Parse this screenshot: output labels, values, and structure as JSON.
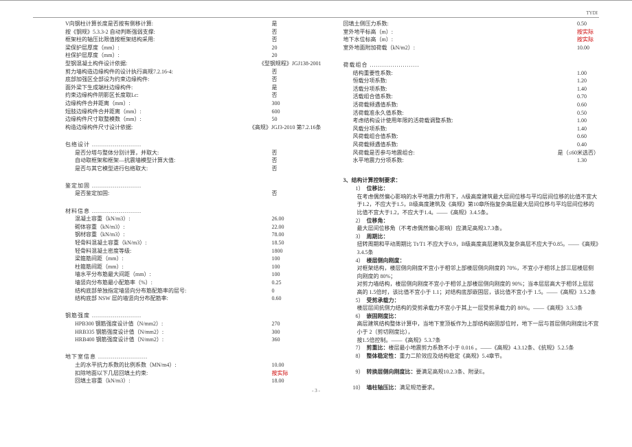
{
  "header": {
    "label": "TYDI",
    "pageNum": "- 3 -"
  },
  "colA": {
    "rows1": [
      {
        "l": "V向钢柱计算长度是否按有侧移计算:",
        "v": "是"
      },
      {
        "l": "按《钢规》5.3.3-2 自动判断强弱支撑:",
        "v": "否"
      },
      {
        "l": "框架柱的轴压比限值按框架结构采用:",
        "v": "否"
      },
      {
        "l": "梁保护层厚度（mm）:",
        "v": "20"
      },
      {
        "l": "柱保护层厚度（mm）:",
        "v": "20"
      },
      {
        "l": "型钢混凝土构件设计依据:",
        "v": "《型钢规程》JGJ138-2001"
      },
      {
        "l": "剪力墙构造边缘构件的设计执行高规7.2.16-4:",
        "v": "否"
      },
      {
        "l": "底部加强区全部设为约束边缘构件:",
        "v": "否"
      },
      {
        "l": "面外梁下生成端柱边缘构件:",
        "v": "是"
      },
      {
        "l": "约束边缘构件阴影区长度取Lc:",
        "v": "否"
      },
      {
        "l": "边缘构件合并距离（mm）:",
        "v": "300"
      },
      {
        "l": "短肢边缘构件合并距离（mm）:",
        "v": "600"
      },
      {
        "l": "边缘构件尺寸取整模数（mm）:",
        "v": "50"
      },
      {
        "l": "构造边缘构件尺寸设计依据:",
        "v": "《高规》JGJ3-2010 第7.2.16条"
      }
    ],
    "sec2": "包络设计 ........................",
    "rows2": [
      {
        "l": "是否分塔与整体分别计算，并取大:",
        "v": "否"
      },
      {
        "l": "自动取框架和框架—抗震墙模型计算大值:",
        "v": "否"
      },
      {
        "l": "是否与其它模型进行包络取大:",
        "v": "否"
      }
    ],
    "sec3": "鉴定加固 ........................",
    "rows3": [
      {
        "l": "是否鉴定加固:",
        "v": "否"
      }
    ],
    "sec4": "材料信息 ........................",
    "rows4": [
      {
        "l": "混凝土容重（kN/m3）:",
        "v": "26.00"
      },
      {
        "l": "砌体容重（kN/m3）:",
        "v": "22.00"
      },
      {
        "l": "钢材容重（kN/m3）:",
        "v": "78.00"
      },
      {
        "l": "轻骨料混凝土容重（kN/m3）:",
        "v": "18.50"
      },
      {
        "l": "轻骨料混凝土密度等级:",
        "v": "1800"
      },
      {
        "l": "梁箍筋间距（mm）:",
        "v": "100"
      },
      {
        "l": "柱箍筋间距（mm）:",
        "v": "100"
      },
      {
        "l": "墙水平分布筋最大间距（mm）:",
        "v": "100"
      },
      {
        "l": "墙竖向分布筋最小配筋率（%）:",
        "v": "0.25"
      },
      {
        "l": "结构底部单独指定墙竖向分布筋配筋率的层号:",
        "v": "0"
      },
      {
        "l": "结构底部 NSW 层的墙竖向分布配筋率:",
        "v": "0.60"
      }
    ],
    "sec5": "钢筋强度 ........................",
    "rows5": [
      {
        "l": "HPB300 钢筋强度设计值（N/mm2）:",
        "v": "270"
      },
      {
        "l": "HRB335 钢筋强度设计值（N/mm2）:",
        "v": "300"
      },
      {
        "l": "HRB400 钢筋强度设计值（N/mm2）:",
        "v": "360"
      }
    ],
    "sec6": "地下室信息 ........................",
    "rows6": [
      {
        "l": "土的水平抗力系数的比例系数（MN/m4）:",
        "v": "10.00"
      },
      {
        "l": "扣除地面以下几层回填土约束:",
        "v": "按实际",
        "red": true
      },
      {
        "l": "回填土容重（kN/m3）:",
        "v": "18.00"
      }
    ]
  },
  "colBtop": [
    {
      "l": "回填土侧压力系数:",
      "v": "0.50"
    },
    {
      "l": "室外地平标高（m）:",
      "v": "按实际",
      "red": true
    },
    {
      "l": "地下水位标高（m）:",
      "v": "按实际",
      "red": true
    },
    {
      "l": "室外地面附加荷载（kN/m2）:",
      "v": "10.00"
    }
  ],
  "colBsec": "荷载组合 ........................",
  "colBrows": [
    {
      "l": "结构重要性系数:",
      "v": "1.00"
    },
    {
      "l": "恒载分项系数:",
      "v": "1.20"
    },
    {
      "l": "活载分项系数:",
      "v": "1.40"
    },
    {
      "l": "活载组合值系数:",
      "v": "0.70"
    },
    {
      "l": "活荷载频遇值系数:",
      "v": "0.60"
    },
    {
      "l": "活荷载准永久值系数:",
      "v": "0.50"
    },
    {
      "l": "考虑结构设计使用年限的活荷载调整系数:",
      "v": "1.00"
    },
    {
      "l": "风载分项系数:",
      "v": "1.40"
    },
    {
      "l": "风荷载组合值系数:",
      "v": "0.60"
    },
    {
      "l": "风荷载频遇值系数:",
      "v": "0.40"
    },
    {
      "l": "风荷载是否参与地震组合:",
      "v": "是（≤60米选否）"
    },
    {
      "l": "水平地震力分项系数:",
      "v": "1.30"
    }
  ],
  "section3": {
    "title": "3、结构计算控制要求：",
    "items": [
      {
        "n": "1）",
        "t": "位移比：",
        "b": true,
        "p": "在考虑偶然偏心影响的水平地震力作用下，A级高度建筑最大层间位移与平均层间位移的比值不宜大于1.2，不应大于1.5，B级高度建筑及《高规》第10章所指复杂高层最大层间位移与平均层间位移的比值不宜大于1.2，不应大于1.4。——《高规》3.4.5条。"
      },
      {
        "n": "2）",
        "t": "位移角：",
        "b": true,
        "p": "最大层间位移角（不考虑偶然偏心影响）应满足高规3.7.3条。"
      },
      {
        "n": "3）",
        "t": "周期比：",
        "b": true,
        "p": "扭转周期和平动周期比 Tt/T1 不应大于0.9，B级高度高层建筑及复杂高层不应大于0.85。——《高规》3.4.5条"
      },
      {
        "n": "4）",
        "t": "楼层侧向刚度：",
        "b": true,
        "p": "对框架结构，楼层侧向刚度不宜小于相邻上部楼层侧向刚度的 70%，不宜小于相邻上部三层楼层侧向刚度的 80%；",
        "p2": "对剪力墙结构，楼层侧向刚度不宜小于相邻上部楼层侧向刚度的 90%；当本层层高大于相邻上层层高的 1.5倍时，该比值不宜小于 1.1；对结构底部嵌固层，该比值不宜小于 1.5。——《高规》3.5.2条"
      },
      {
        "n": "5）",
        "t": "受剪承载力：",
        "b": true,
        "p": "楼层层间抗侧力结构的受剪承载力不宜小于其上一层受剪承载力的 80%。——《高规》3.5.3条"
      },
      {
        "n": "6）",
        "t": "嵌固刚度比：",
        "b": true,
        "p": "高层建筑结构整体计算中，当地下室顶板作为上部结构嵌固部位时，地下一层与首层侧向刚度比不宜小于 2（剪切刚度比），",
        "p2b": "按1.5倍控制",
        "p2a": "。——《高规》5.3.7条"
      },
      {
        "n": "7）",
        "t": "剪重比：",
        "b": true,
        "inline": "楼层最小地震剪力系数不小于 0.016 。——《高规》4.3.12条、《抗规》5.2.5条"
      },
      {
        "n": "8）",
        "t": "整体稳定性：",
        "b": true,
        "inline": "重力二阶效应及结构稳定《高规》5.4章节。"
      },
      {
        "n": "",
        "t": "",
        "p": ""
      },
      {
        "n": "9）",
        "t": "转换层侧向刚度比：",
        "b": true,
        "inline": "要满足高规10.2.3条、附录E。"
      },
      {
        "n": "",
        "t": "",
        "p": ""
      },
      {
        "n": "10）",
        "t": "墙柱轴压比：",
        "b": true,
        "inline": "满足规范要求。"
      }
    ]
  }
}
